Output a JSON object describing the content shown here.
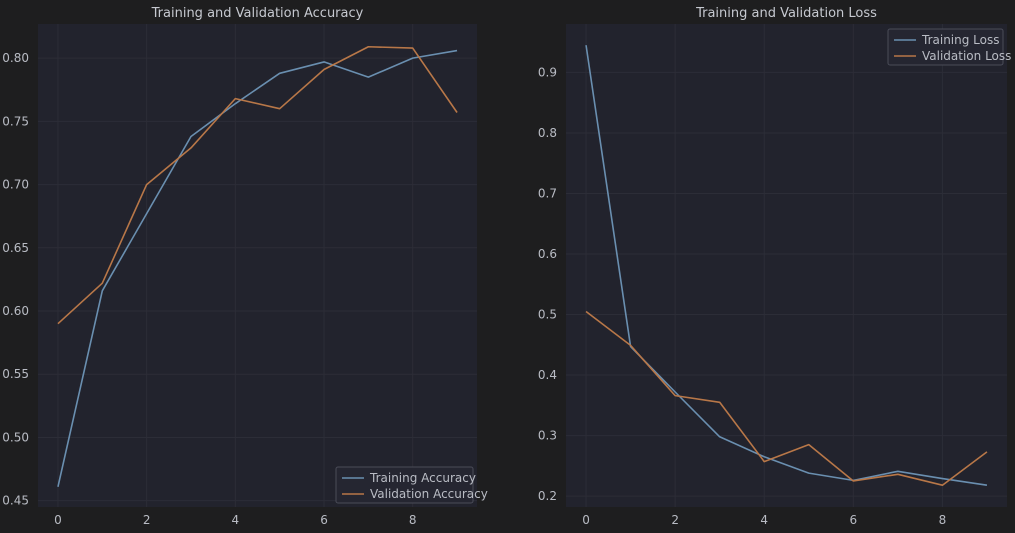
{
  "colors": {
    "figure_bg": "#1e1e1f",
    "axes_bg": "#22232d",
    "grid": "#2c2d37",
    "text": "#b9bcc4",
    "title": "#c6c9d0",
    "training": "#6a8fb0",
    "validation": "#b87748",
    "legend_bg": "#252631",
    "legend_edge": "#4a4c58"
  },
  "chart_data": [
    {
      "type": "line",
      "title": "Training and Validation Accuracy",
      "xlabel": "",
      "ylabel": "",
      "x": [
        0,
        1,
        2,
        3,
        4,
        5,
        6,
        7,
        8,
        9
      ],
      "xlim": [
        -0.45,
        9.45
      ],
      "ylim": [
        0.445,
        0.827
      ],
      "xticks": [
        0,
        2,
        4,
        6,
        8
      ],
      "yticks": [
        0.45,
        0.5,
        0.55,
        0.6,
        0.65,
        0.7,
        0.75,
        0.8
      ],
      "xtick_labels": [
        "0",
        "2",
        "4",
        "6",
        "8"
      ],
      "ytick_labels": [
        "0.45",
        "0.50",
        "0.55",
        "0.60",
        "0.65",
        "0.70",
        "0.75",
        "0.80"
      ],
      "grid": true,
      "legend": "lower-right",
      "series": [
        {
          "name": "Training Accuracy",
          "color": "#6a8fb0",
          "values": [
            0.461,
            0.616,
            0.677,
            0.738,
            0.764,
            0.788,
            0.797,
            0.785,
            0.8,
            0.806
          ]
        },
        {
          "name": "Validation Accuracy",
          "color": "#b87748",
          "values": [
            0.59,
            0.622,
            0.7,
            0.729,
            0.768,
            0.76,
            0.791,
            0.809,
            0.808,
            0.757
          ]
        }
      ]
    },
    {
      "type": "line",
      "title": "Training and Validation Loss",
      "xlabel": "",
      "ylabel": "",
      "x": [
        0,
        1,
        2,
        3,
        4,
        5,
        6,
        7,
        8,
        9
      ],
      "xlim": [
        -0.45,
        9.45
      ],
      "ylim": [
        0.182,
        0.98
      ],
      "xticks": [
        0,
        2,
        4,
        6,
        8
      ],
      "yticks": [
        0.2,
        0.3,
        0.4,
        0.5,
        0.6,
        0.7,
        0.8,
        0.9
      ],
      "xtick_labels": [
        "0",
        "2",
        "4",
        "6",
        "8"
      ],
      "ytick_labels": [
        "0.2",
        "0.3",
        "0.4",
        "0.5",
        "0.6",
        "0.7",
        "0.8",
        "0.9"
      ],
      "grid": true,
      "legend": "top-right",
      "series": [
        {
          "name": "Training Loss",
          "color": "#6a8fb0",
          "values": [
            0.945,
            0.447,
            0.372,
            0.298,
            0.265,
            0.238,
            0.226,
            0.241,
            0.229,
            0.218
          ]
        },
        {
          "name": "Validation Loss",
          "color": "#b87748",
          "values": [
            0.505,
            0.449,
            0.366,
            0.355,
            0.257,
            0.285,
            0.225,
            0.236,
            0.218,
            0.273
          ]
        }
      ]
    }
  ]
}
